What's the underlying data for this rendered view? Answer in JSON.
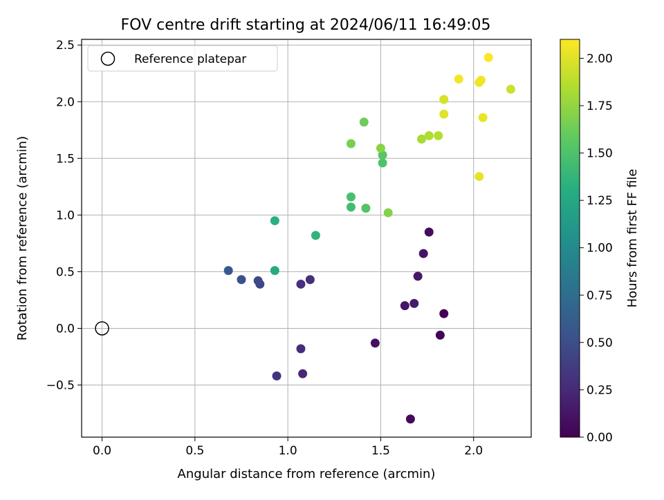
{
  "chart_data": {
    "type": "scatter",
    "title": "FOV centre drift starting at 2024/06/11 16:49:05",
    "xlabel": "Angular distance from reference (arcmin)",
    "ylabel": "Rotation from reference (arcmin)",
    "xlim": [
      -0.11,
      2.31
    ],
    "ylim": [
      -0.96,
      2.55
    ],
    "xticks": [
      0.0,
      0.5,
      1.0,
      1.5,
      2.0
    ],
    "xtick_labels": [
      "0.0",
      "0.5",
      "1.0",
      "1.5",
      "2.0"
    ],
    "yticks": [
      -0.5,
      0.0,
      0.5,
      1.0,
      1.5,
      2.0,
      2.5
    ],
    "ytick_labels": [
      "−0.5",
      "0.0",
      "0.5",
      "1.0",
      "1.5",
      "2.0",
      "2.5"
    ],
    "grid": true,
    "legend": {
      "position": "top-left",
      "entries": [
        "Reference platepar"
      ]
    },
    "reference_point": {
      "x": 0.0,
      "y": 0.0,
      "label": "Reference platepar"
    },
    "colorbar": {
      "label": "Hours from first FF file",
      "range": [
        0.0,
        2.1
      ],
      "ticks": [
        0.0,
        0.25,
        0.5,
        0.75,
        1.0,
        1.25,
        1.5,
        1.75,
        2.0
      ],
      "tick_labels": [
        "0.00",
        "0.25",
        "0.50",
        "0.75",
        "1.00",
        "1.25",
        "1.50",
        "1.75",
        "2.00"
      ],
      "colormap": "viridis"
    },
    "points": [
      {
        "x": 1.84,
        "y": 0.13,
        "c": 0.0
      },
      {
        "x": 1.82,
        "y": -0.06,
        "c": 0.02
      },
      {
        "x": 1.66,
        "y": -0.8,
        "c": 0.05
      },
      {
        "x": 1.76,
        "y": 0.85,
        "c": 0.07
      },
      {
        "x": 1.47,
        "y": -0.13,
        "c": 0.09
      },
      {
        "x": 1.73,
        "y": 0.66,
        "c": 0.11
      },
      {
        "x": 1.63,
        "y": 0.2,
        "c": 0.13
      },
      {
        "x": 1.7,
        "y": 0.46,
        "c": 0.14
      },
      {
        "x": 1.68,
        "y": 0.22,
        "c": 0.16
      },
      {
        "x": 1.08,
        "y": -0.4,
        "c": 0.24
      },
      {
        "x": 1.07,
        "y": -0.18,
        "c": 0.26
      },
      {
        "x": 1.12,
        "y": 0.43,
        "c": 0.28
      },
      {
        "x": 1.07,
        "y": 0.39,
        "c": 0.3
      },
      {
        "x": 0.94,
        "y": -0.42,
        "c": 0.32
      },
      {
        "x": 0.85,
        "y": 0.39,
        "c": 0.45
      },
      {
        "x": 0.84,
        "y": 0.42,
        "c": 0.47
      },
      {
        "x": 0.75,
        "y": 0.43,
        "c": 0.52
      },
      {
        "x": 0.68,
        "y": 0.51,
        "c": 0.58
      },
      {
        "x": 0.93,
        "y": 0.51,
        "c": 1.28
      },
      {
        "x": 0.93,
        "y": 0.95,
        "c": 1.32
      },
      {
        "x": 1.15,
        "y": 0.82,
        "c": 1.36
      },
      {
        "x": 1.34,
        "y": 1.07,
        "c": 1.45
      },
      {
        "x": 1.34,
        "y": 1.16,
        "c": 1.47
      },
      {
        "x": 1.42,
        "y": 1.06,
        "c": 1.52
      },
      {
        "x": 1.51,
        "y": 1.46,
        "c": 1.5
      },
      {
        "x": 1.51,
        "y": 1.53,
        "c": 1.54
      },
      {
        "x": 1.41,
        "y": 1.82,
        "c": 1.62
      },
      {
        "x": 1.34,
        "y": 1.63,
        "c": 1.66
      },
      {
        "x": 1.54,
        "y": 1.02,
        "c": 1.7
      },
      {
        "x": 1.5,
        "y": 1.59,
        "c": 1.72
      },
      {
        "x": 1.72,
        "y": 1.67,
        "c": 1.82
      },
      {
        "x": 1.76,
        "y": 1.7,
        "c": 1.84
      },
      {
        "x": 1.81,
        "y": 1.7,
        "c": 1.86
      },
      {
        "x": 2.2,
        "y": 2.11,
        "c": 1.94
      },
      {
        "x": 1.84,
        "y": 2.02,
        "c": 1.97
      },
      {
        "x": 1.84,
        "y": 1.89,
        "c": 2.0
      },
      {
        "x": 2.03,
        "y": 1.34,
        "c": 2.02
      },
      {
        "x": 2.05,
        "y": 1.86,
        "c": 2.03
      },
      {
        "x": 2.03,
        "y": 2.17,
        "c": 2.05
      },
      {
        "x": 2.04,
        "y": 2.19,
        "c": 2.06
      },
      {
        "x": 1.92,
        "y": 2.2,
        "c": 2.07
      },
      {
        "x": 2.08,
        "y": 2.39,
        "c": 2.09
      }
    ]
  }
}
